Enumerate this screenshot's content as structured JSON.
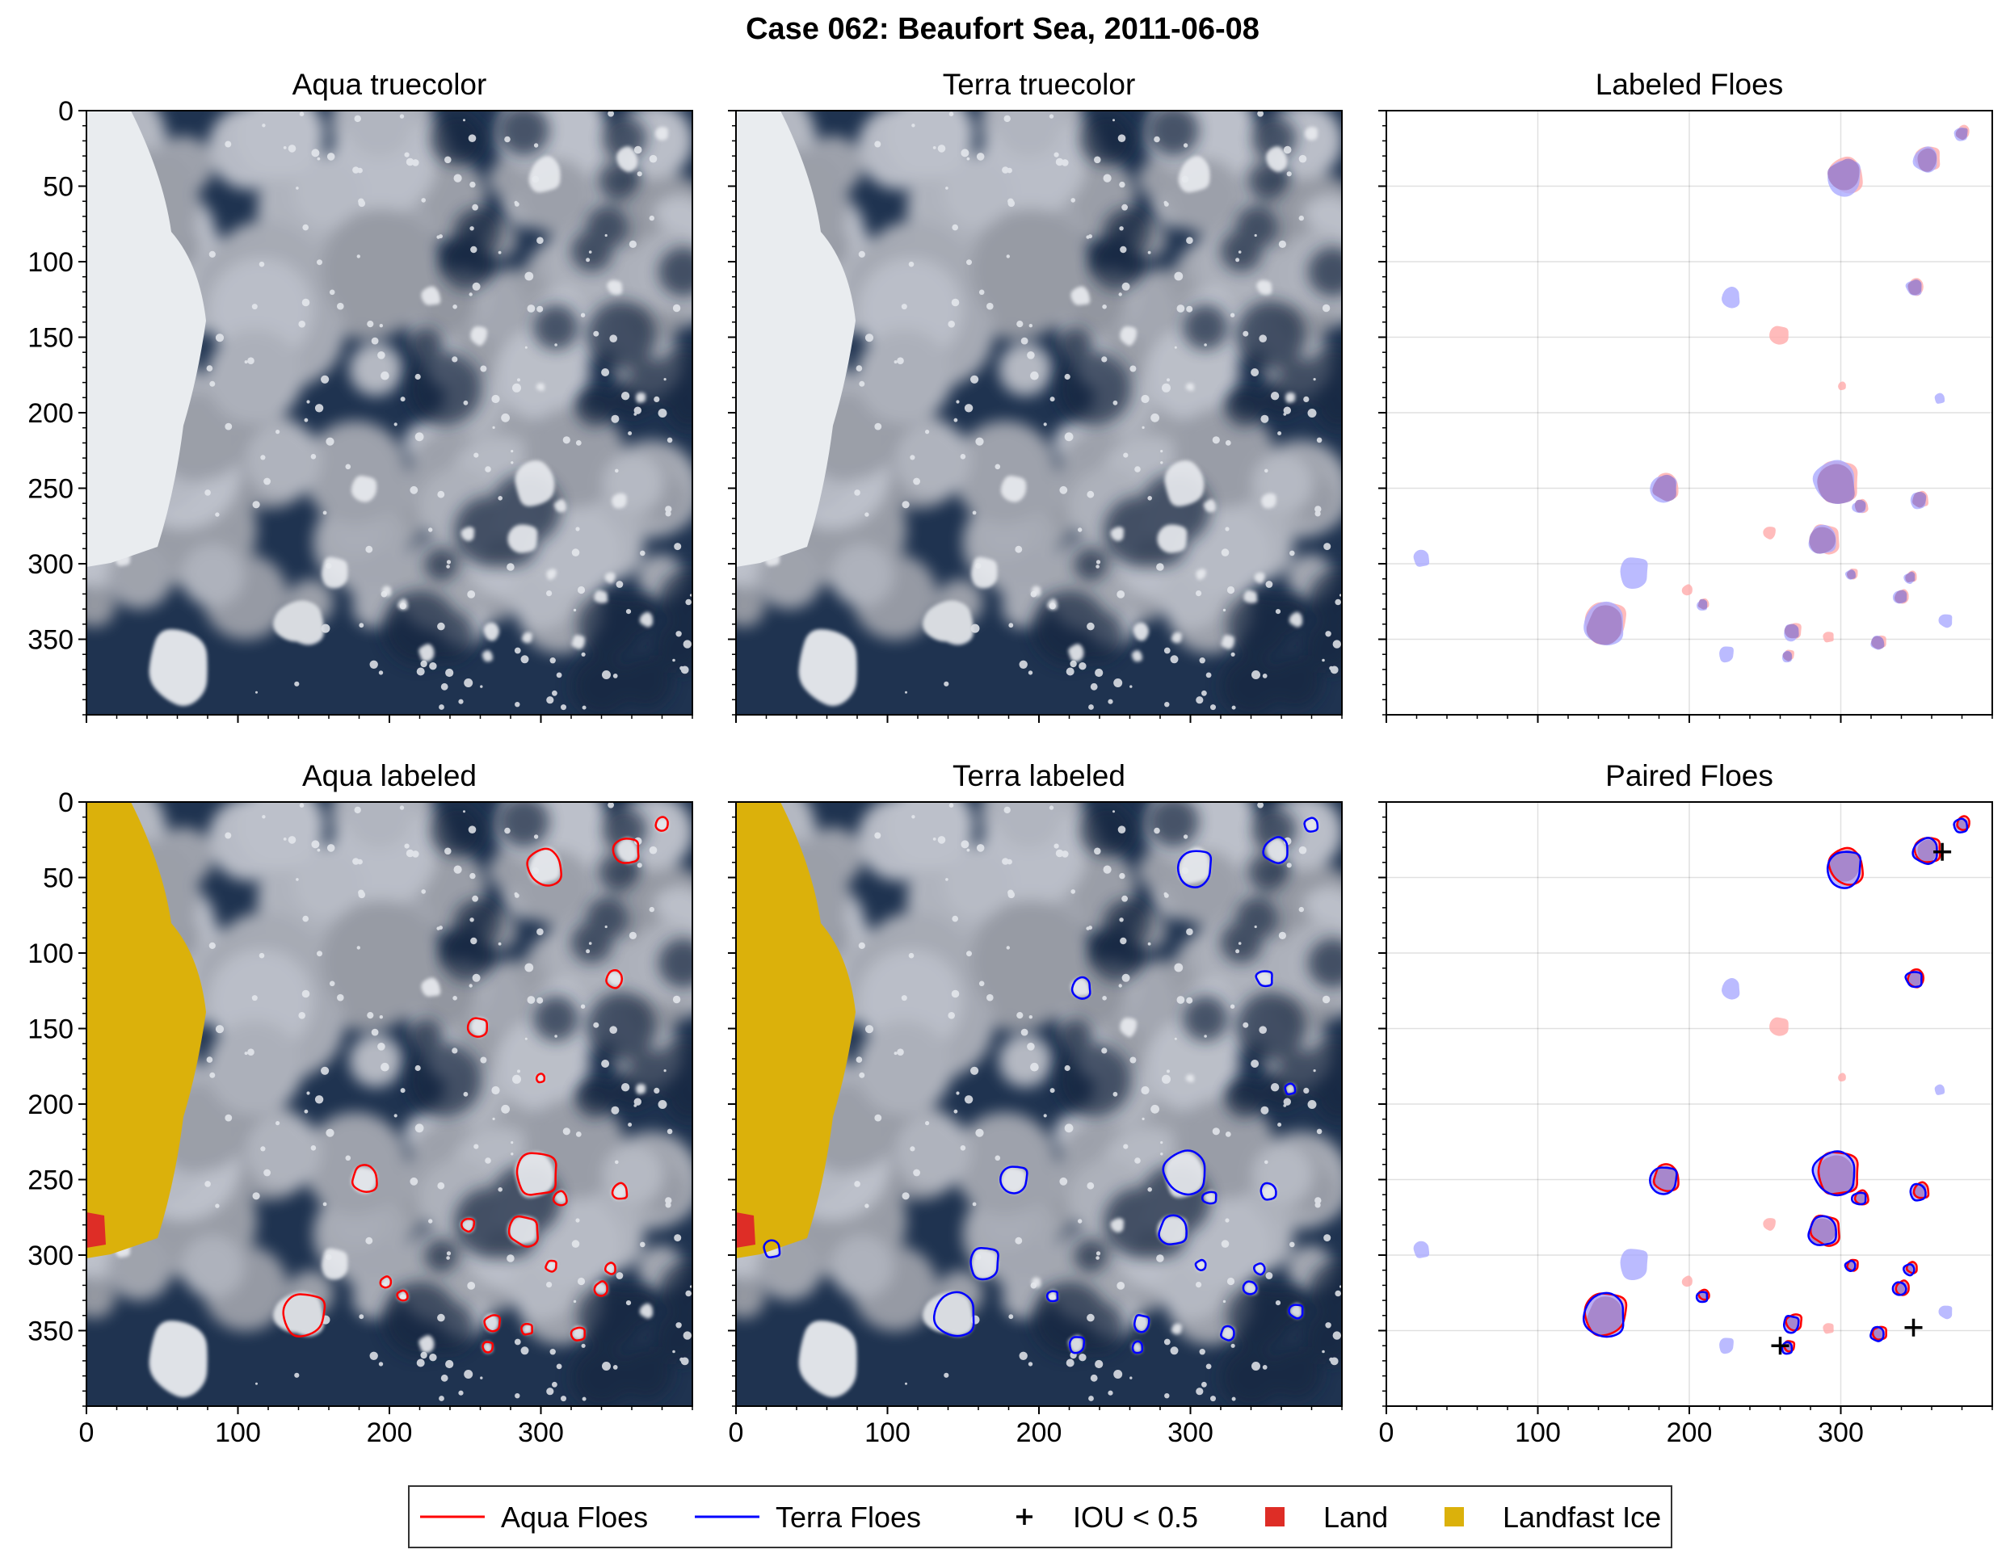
{
  "figure": {
    "title": "Case 062: Beaufort Sea, 2011-06-08"
  },
  "panels": [
    {
      "id": "aqua-truecolor",
      "title": "Aqua truecolor",
      "kind": "satellite"
    },
    {
      "id": "terra-truecolor",
      "title": "Terra truecolor",
      "kind": "satellite"
    },
    {
      "id": "labeled-floes",
      "title": "Labeled Floes",
      "kind": "overlay"
    },
    {
      "id": "aqua-labeled",
      "title": "Aqua labeled",
      "kind": "satellite-labeled",
      "outline": "aqua"
    },
    {
      "id": "terra-labeled",
      "title": "Terra labeled",
      "kind": "satellite-labeled",
      "outline": "terra"
    },
    {
      "id": "paired-floes",
      "title": "Paired Floes",
      "kind": "paired"
    }
  ],
  "axes": {
    "xticks": [
      "0",
      "100",
      "200",
      "300"
    ],
    "yticks": [
      "0",
      "50",
      "100",
      "150",
      "200",
      "250",
      "300",
      "350"
    ],
    "xlim": [
      0,
      400
    ],
    "ylim": [
      400,
      0
    ],
    "grid": true,
    "x_ticklabels_on": "bottom row",
    "y_ticklabels_on": "left column"
  },
  "legend": {
    "position": "bottom-center",
    "items": [
      {
        "label": "Aqua Floes",
        "symbol": "line",
        "color": "#ff0000"
      },
      {
        "label": "Terra Floes",
        "symbol": "line",
        "color": "#0000ff"
      },
      {
        "label": "IOU < 0.5",
        "symbol": "plus",
        "color": "#000000"
      },
      {
        "label": "Land",
        "symbol": "square",
        "color": "#de2d26"
      },
      {
        "label": "Landfast Ice",
        "symbol": "square",
        "color": "#dbb10b"
      }
    ]
  },
  "colors": {
    "aqua_floe_fill": "#ffaaaa",
    "terra_floe_fill": "#aaaaff",
    "overlap_fill": "#a583c8",
    "ocean": "#1f3350",
    "land": "#de2d26",
    "landfast_ice": "#dbb10b"
  },
  "chart_data": {
    "type": "scatter",
    "title": "Case 062: Beaufort Sea, 2011-06-08",
    "xlim": [
      0,
      400
    ],
    "ylim": [
      400,
      0
    ],
    "floes": [
      {
        "x": 303,
        "y": 43,
        "r": 13,
        "aqua": true,
        "terra": true
      },
      {
        "x": 357,
        "y": 32,
        "r": 9,
        "aqua": true,
        "terra": true
      },
      {
        "x": 380,
        "y": 15,
        "r": 5,
        "aqua": true,
        "terra": true
      },
      {
        "x": 349,
        "y": 117,
        "r": 6,
        "aqua": true,
        "terra": true
      },
      {
        "x": 228,
        "y": 123,
        "r": 7,
        "aqua": false,
        "terra": true
      },
      {
        "x": 259,
        "y": 149,
        "r": 7,
        "aqua": true,
        "terra": false
      },
      {
        "x": 184,
        "y": 250,
        "r": 10,
        "aqua": true,
        "terra": true
      },
      {
        "x": 297,
        "y": 247,
        "r": 16,
        "aqua": true,
        "terra": true
      },
      {
        "x": 289,
        "y": 284,
        "r": 11,
        "aqua": true,
        "terra": true
      },
      {
        "x": 164,
        "y": 305,
        "r": 11,
        "aqua": false,
        "terra": true
      },
      {
        "x": 145,
        "y": 340,
        "r": 15,
        "aqua": true,
        "terra": true
      },
      {
        "x": 24,
        "y": 296,
        "r": 6,
        "aqua": false,
        "terra": true
      },
      {
        "x": 340,
        "y": 322,
        "r": 5,
        "aqua": true,
        "terra": true
      },
      {
        "x": 268,
        "y": 345,
        "r": 6,
        "aqua": true,
        "terra": true
      },
      {
        "x": 325,
        "y": 352,
        "r": 5,
        "aqua": true,
        "terra": true
      },
      {
        "x": 352,
        "y": 258,
        "r": 6,
        "aqua": true,
        "terra": true
      },
      {
        "x": 313,
        "y": 262,
        "r": 5,
        "aqua": true,
        "terra": true
      },
      {
        "x": 252,
        "y": 280,
        "r": 5,
        "aqua": true,
        "terra": false
      },
      {
        "x": 198,
        "y": 318,
        "r": 4,
        "aqua": true,
        "terra": false
      },
      {
        "x": 209,
        "y": 327,
        "r": 4,
        "aqua": true,
        "terra": true
      },
      {
        "x": 307,
        "y": 307,
        "r": 4,
        "aqua": true,
        "terra": true
      },
      {
        "x": 346,
        "y": 309,
        "r": 4,
        "aqua": true,
        "terra": true
      },
      {
        "x": 225,
        "y": 359,
        "r": 6,
        "aqua": false,
        "terra": true
      },
      {
        "x": 291,
        "y": 349,
        "r": 4,
        "aqua": true,
        "terra": false
      },
      {
        "x": 366,
        "y": 190,
        "r": 4,
        "aqua": false,
        "terra": true
      },
      {
        "x": 370,
        "y": 337,
        "r": 5,
        "aqua": false,
        "terra": true
      },
      {
        "x": 265,
        "y": 361,
        "r": 4,
        "aqua": true,
        "terra": true
      },
      {
        "x": 300,
        "y": 183,
        "r": 3,
        "aqua": true,
        "terra": false
      }
    ],
    "iou_below_half": [
      {
        "x": 367,
        "y": 33
      },
      {
        "x": 260,
        "y": 360
      },
      {
        "x": 348,
        "y": 348
      }
    ]
  }
}
